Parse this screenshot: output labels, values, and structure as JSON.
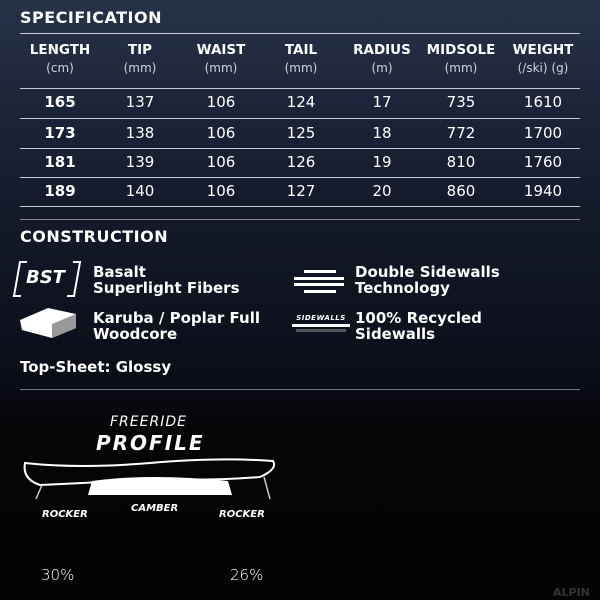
{
  "spec": {
    "title": "SPECIFICATION",
    "columns": [
      {
        "label": "LENGTH",
        "unit": "(cm)"
      },
      {
        "label": "TIP",
        "unit": "(mm)"
      },
      {
        "label": "WAIST",
        "unit": "(mm)"
      },
      {
        "label": "TAIL",
        "unit": "(mm)"
      },
      {
        "label": "RADIUS",
        "unit": "(m)"
      },
      {
        "label": "MIDSOLE",
        "unit": "(mm)"
      },
      {
        "label": "WEIGHT",
        "unit": "(/ski) (g)"
      }
    ],
    "rows": [
      [
        "165",
        "137",
        "106",
        "124",
        "17",
        "735",
        "1610"
      ],
      [
        "173",
        "138",
        "106",
        "125",
        "18",
        "772",
        "1700"
      ],
      [
        "181",
        "139",
        "106",
        "126",
        "19",
        "810",
        "1760"
      ],
      [
        "189",
        "140",
        "106",
        "127",
        "20",
        "860",
        "1940"
      ]
    ]
  },
  "construction": {
    "title": "CONSTRUCTION",
    "items": [
      {
        "icon": "bst-icon",
        "badge": "BST",
        "line1": "Basalt",
        "line2": "Superlight Fibers"
      },
      {
        "icon": "double-sidewalls-icon",
        "line1": "Double Sidewalls",
        "line2": "Technology"
      },
      {
        "icon": "woodcore-icon",
        "line1": "Karuba / Poplar Full",
        "line2": "Woodcore"
      },
      {
        "icon": "recycled-sidewalls-icon",
        "badge": "SIDEWALLS",
        "line1": "100% Recycled",
        "line2": "Sidewalls"
      }
    ],
    "topsheet": "Top-Sheet: Glossy"
  },
  "profile": {
    "subtitle": "FREERIDE",
    "title": "PROFILE",
    "rocker_left": "ROCKER",
    "camber": "CAMBER",
    "rocker_right": "ROCKER",
    "pct_left": "30%",
    "pct_right": "26%"
  },
  "watermark": "ALPIN"
}
